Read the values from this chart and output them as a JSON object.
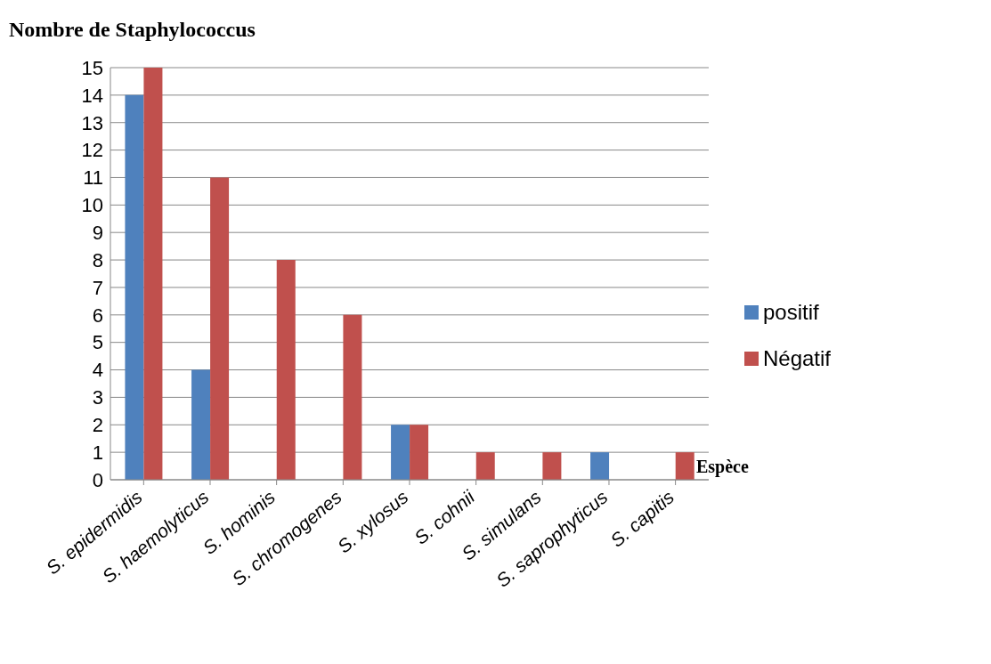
{
  "chart_data": {
    "type": "bar",
    "title": "Nombre de Staphylococcus",
    "xlabel": "Espèce",
    "categories": [
      "S. epidermidis",
      "S. haemolyticus",
      "S. hominis",
      "S. chromogenes",
      "S. xylosus",
      "S. cohnii",
      "S. simulans",
      "S. saprophyticus",
      "S. capitis"
    ],
    "series": [
      {
        "name": "positif",
        "color": "#4f81bd",
        "values": [
          14,
          4,
          0,
          0,
          2,
          0,
          0,
          1,
          0
        ]
      },
      {
        "name": "Négatif",
        "color": "#c0504d",
        "values": [
          15,
          11,
          8,
          6,
          2,
          1,
          1,
          0,
          1
        ]
      }
    ],
    "ylim": [
      0,
      15
    ],
    "yticks": [
      0,
      1,
      2,
      3,
      4,
      5,
      6,
      7,
      8,
      9,
      10,
      11,
      12,
      13,
      14,
      15
    ],
    "grid": "y",
    "legend": "right"
  }
}
